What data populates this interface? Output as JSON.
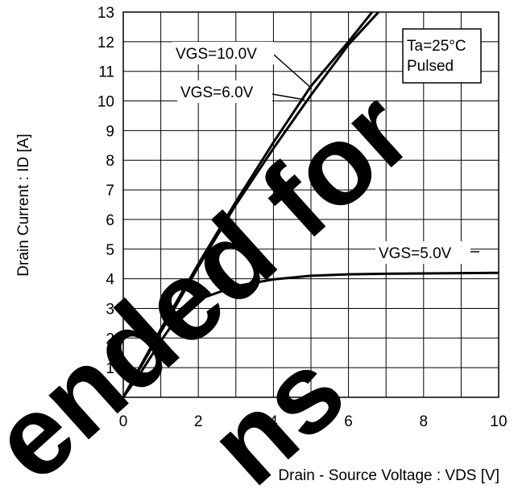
{
  "chart_data": {
    "type": "line",
    "y_label": "Drain Current : ID [A]",
    "x_label": "Drain - Source Voltage : VDS [V]",
    "annotations": [
      "Ta=25°C",
      "Pulsed"
    ],
    "watermark": [
      "ended for",
      "ns"
    ],
    "xlim": [
      0,
      10
    ],
    "xticks": [
      0,
      2,
      4,
      6,
      8,
      10
    ],
    "xminor": [
      1,
      3,
      5,
      7,
      9
    ],
    "ylim": [
      0,
      13
    ],
    "yticks": [
      0,
      1,
      2,
      3,
      4,
      5,
      6,
      7,
      8,
      9,
      10,
      11,
      12,
      13
    ],
    "grid": true,
    "series": [
      {
        "name": "VGS=10.0V",
        "color": "#000000",
        "x": [
          0,
          1,
          2,
          3,
          4,
          5,
          6,
          6.63
        ],
        "values": [
          0,
          2.3,
          4.5,
          6.6,
          8.6,
          10.5,
          12.0,
          13
        ]
      },
      {
        "name": "VGS=6.0V",
        "color": "#000000",
        "x": [
          0,
          1,
          2,
          3,
          4,
          5,
          6,
          6.8
        ],
        "values": [
          0,
          2.2,
          4.4,
          6.5,
          8.4,
          10.2,
          11.9,
          13
        ]
      },
      {
        "name": "VGS=5.0V",
        "color": "#000000",
        "x": [
          0,
          0.5,
          1,
          1.5,
          2,
          3,
          4,
          5,
          6,
          7,
          8,
          9,
          10
        ],
        "values": [
          0,
          0.9,
          1.9,
          2.8,
          3.3,
          3.75,
          3.98,
          4.1,
          4.15,
          4.17,
          4.18,
          4.19,
          4.2
        ]
      }
    ]
  }
}
